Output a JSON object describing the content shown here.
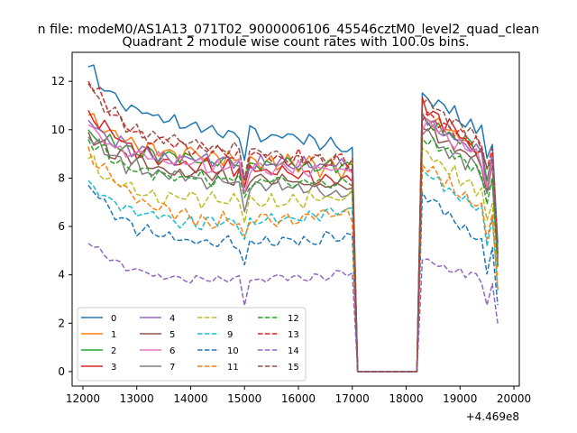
{
  "figure": {
    "suptitle": "n file: modeM0/AS1A13_071T02_9000006106_45546cztM0_level2_quad_clean"
  },
  "chart_data": {
    "type": "line",
    "title": "Quadrant 2 module wise count rates with 100.0s bins.",
    "xlabel": "",
    "ylabel": "",
    "x_offset_label": "+4.469e8",
    "xlim": [
      11800,
      20100
    ],
    "ylim": [
      -0.6,
      13.2
    ],
    "xticks": [
      12000,
      13000,
      14000,
      15000,
      16000,
      17000,
      18000,
      19000,
      20000
    ],
    "yticks": [
      0,
      2,
      4,
      6,
      8,
      10,
      12
    ],
    "grid": false,
    "legend_position": "lower-left",
    "legend_columns": 4,
    "gap": {
      "x_start": 17100,
      "x_end": 18200,
      "value": 0
    },
    "segment1": {
      "x_start": 12100,
      "x_end": 17000,
      "step": 100
    },
    "segment2": {
      "x_start": 18300,
      "x_end": 19700,
      "step": 100
    },
    "series": [
      {
        "name": "0",
        "color": "#1f77b4",
        "dash": "solid",
        "start": 12.6,
        "base": 9.5,
        "decay": 3.1,
        "bump": 0.3,
        "amp": 0.35,
        "phase": 0.0,
        "end_level": 9.2,
        "s2_peak": 11.4,
        "s2_end": 9.6
      },
      {
        "name": "1",
        "color": "#ff7f0e",
        "dash": "solid",
        "start": 10.6,
        "base": 8.4,
        "decay": 2.2,
        "bump": 0.3,
        "amp": 0.4,
        "phase": 0.7,
        "end_level": 8.3,
        "s2_peak": 10.6,
        "s2_end": 8.7
      },
      {
        "name": "2",
        "color": "#2ca02c",
        "dash": "solid",
        "start": 10.0,
        "base": 8.4,
        "decay": 1.6,
        "bump": 0.2,
        "amp": 0.3,
        "phase": 1.3,
        "end_level": 8.4,
        "s2_peak": 10.4,
        "s2_end": 8.8
      },
      {
        "name": "3",
        "color": "#d62728",
        "dash": "solid",
        "start": 10.8,
        "base": 8.0,
        "decay": 2.8,
        "bump": 0.3,
        "amp": 0.35,
        "phase": 2.1,
        "end_level": 7.9,
        "s2_peak": 11.0,
        "s2_end": 8.5
      },
      {
        "name": "4",
        "color": "#9467bd",
        "dash": "solid",
        "start": 10.4,
        "base": 8.2,
        "decay": 2.2,
        "bump": 0.3,
        "amp": 0.35,
        "phase": 2.9,
        "end_level": 8.5,
        "s2_peak": 10.5,
        "s2_end": 8.6
      },
      {
        "name": "5",
        "color": "#8c564b",
        "dash": "solid",
        "start": 9.9,
        "base": 7.7,
        "decay": 2.2,
        "bump": 0.2,
        "amp": 0.35,
        "phase": 3.6,
        "end_level": 7.6,
        "s2_peak": 10.2,
        "s2_end": 8.1
      },
      {
        "name": "6",
        "color": "#e377c2",
        "dash": "solid",
        "start": 10.2,
        "base": 8.0,
        "decay": 2.2,
        "bump": 0.3,
        "amp": 0.35,
        "phase": 4.4,
        "end_level": 8.3,
        "s2_peak": 10.3,
        "s2_end": 8.4
      },
      {
        "name": "7",
        "color": "#7f7f7f",
        "dash": "solid",
        "start": 9.7,
        "base": 7.4,
        "decay": 2.3,
        "bump": 0.3,
        "amp": 0.35,
        "phase": 5.1,
        "end_level": 7.4,
        "s2_peak": 9.8,
        "s2_end": 7.9
      },
      {
        "name": "8",
        "color": "#bcbd22",
        "dash": "dashed",
        "start": 8.8,
        "base": 6.5,
        "decay": 2.3,
        "bump": 0.3,
        "amp": 0.35,
        "phase": 0.4,
        "end_level": 7.2,
        "s2_peak": 9.0,
        "s2_end": 7.0
      },
      {
        "name": "9",
        "color": "#17becf",
        "dash": "dashed",
        "start": 7.9,
        "base": 5.6,
        "decay": 2.3,
        "bump": 0.3,
        "amp": 0.3,
        "phase": 1.1,
        "end_level": 6.6,
        "s2_peak": 8.3,
        "s2_end": 6.1
      },
      {
        "name": "10",
        "color": "#1f77b4",
        "dash": "dashed",
        "start": 7.7,
        "base": 4.7,
        "decay": 3.0,
        "bump": 0.3,
        "amp": 0.3,
        "phase": 1.9,
        "end_level": 5.6,
        "s2_peak": 7.3,
        "s2_end": 5.0
      },
      {
        "name": "11",
        "color": "#ff7f0e",
        "dash": "dashed",
        "start": 9.3,
        "base": 5.6,
        "decay": 3.7,
        "bump": 0.3,
        "amp": 0.35,
        "phase": 2.6,
        "end_level": 6.5,
        "s2_peak": 8.6,
        "s2_end": 6.2
      },
      {
        "name": "12",
        "color": "#2ca02c",
        "dash": "dashed",
        "start": 9.6,
        "base": 7.5,
        "decay": 2.1,
        "bump": 0.3,
        "amp": 0.3,
        "phase": 3.3,
        "end_level": 7.7,
        "s2_peak": 9.6,
        "s2_end": 7.9
      },
      {
        "name": "13",
        "color": "#d62728",
        "dash": "dashed",
        "start": 12.0,
        "base": 8.6,
        "decay": 3.4,
        "bump": 0.3,
        "amp": 0.35,
        "phase": 4.0,
        "end_level": 8.6,
        "s2_peak": 10.7,
        "s2_end": 9.0
      },
      {
        "name": "14",
        "color": "#9467bd",
        "dash": "dashed",
        "start": 5.3,
        "base": 3.4,
        "decay": 1.9,
        "bump": 0.2,
        "amp": 0.2,
        "phase": 4.8,
        "end_level": 4.1,
        "s2_peak": 4.7,
        "s2_end": 3.6
      },
      {
        "name": "15",
        "color": "#8c564b",
        "dash": "dashed",
        "start": 11.9,
        "base": 8.7,
        "decay": 3.2,
        "bump": 0.3,
        "amp": 0.35,
        "phase": 5.5,
        "end_level": 8.6,
        "s2_peak": 11.2,
        "s2_end": 8.9
      }
    ]
  }
}
